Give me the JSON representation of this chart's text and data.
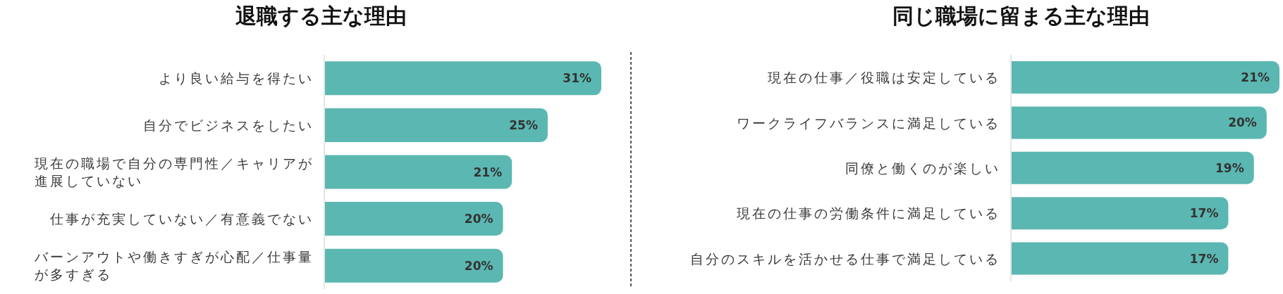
{
  "chart_data": [
    {
      "type": "bar",
      "orientation": "horizontal",
      "title": "退職する主な理由",
      "categories": [
        "より良い給与を得たい",
        "自分でビジネスをしたい",
        "現在の職場で自分の専門性／キャリアが進展していない",
        "仕事が充実していない／有意義でない",
        "バーンアウトや働きすぎが心配／仕事量が多すぎる"
      ],
      "values": [
        31,
        25,
        21,
        20,
        20
      ],
      "value_labels": [
        "31%",
        "25%",
        "21%",
        "20%",
        "20%"
      ],
      "color": "#5bb7b1"
    },
    {
      "type": "bar",
      "orientation": "horizontal",
      "title": "同じ職場に留まる主な理由",
      "categories": [
        "現在の仕事／役職は安定している",
        "ワークライフバランスに満足している",
        "同僚と働くのが楽しい",
        "現在の仕事の労働条件に満足している",
        "自分のスキルを活かせる仕事で満足している"
      ],
      "values": [
        21,
        20,
        19,
        17,
        17
      ],
      "value_labels": [
        "21%",
        "20%",
        "19%",
        "17%",
        "17%"
      ],
      "color": "#5bb7b1"
    }
  ]
}
